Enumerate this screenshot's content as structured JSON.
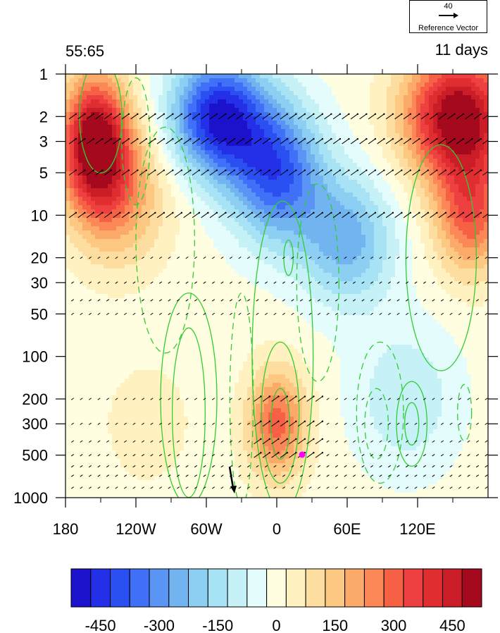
{
  "header": {
    "left_label": "55:65",
    "right_label": "11 days"
  },
  "reference_vector": {
    "magnitude": "40",
    "label": "Reference Vector"
  },
  "chart_data": {
    "type": "heatmap",
    "subtype": "longitude-pressure cross section with contours and wind vectors",
    "x_axis": {
      "range": [
        180,
        540
      ],
      "ticks": [
        {
          "value": 180,
          "label": "180"
        },
        {
          "value": 240,
          "label": "120W"
        },
        {
          "value": 300,
          "label": "60W"
        },
        {
          "value": 360,
          "label": "0"
        },
        {
          "value": 420,
          "label": "60E"
        },
        {
          "value": 480,
          "label": "120E"
        }
      ]
    },
    "y_axis": {
      "scale": "log",
      "reversed": true,
      "range": [
        1,
        1000
      ],
      "ticks": [
        1,
        2,
        3,
        5,
        10,
        20,
        30,
        50,
        100,
        200,
        300,
        500,
        1000
      ]
    },
    "colorbar": {
      "levels": [
        -525,
        -475,
        -425,
        -375,
        -325,
        -275,
        -225,
        -175,
        -125,
        -75,
        -25,
        25,
        75,
        125,
        175,
        225,
        275,
        325,
        375,
        425,
        475,
        525
      ],
      "colors": [
        "#1c12cc",
        "#2330e8",
        "#2a50f2",
        "#3f70f7",
        "#5a95f5",
        "#72b4f0",
        "#8ccff2",
        "#a8e2f5",
        "#c6f1f7",
        "#e5fcfc",
        "#fffee0",
        "#fff1c0",
        "#fedea0",
        "#fdc882",
        "#fcaa6a",
        "#fb8856",
        "#f66146",
        "#ee4040",
        "#e02d2f",
        "#ca1d27",
        "#a4091d"
      ],
      "tick_labels": [
        "-450",
        "-300",
        "-150",
        "0",
        "150",
        "300",
        "450"
      ]
    },
    "field_anomalies": [
      {
        "lon": 205,
        "p": 3,
        "value": 520,
        "rx": 28,
        "rp": 1.3
      },
      {
        "lon": 225,
        "p": 7,
        "value": 220,
        "rx": 40,
        "rp": 1.4
      },
      {
        "lon": 515,
        "p": 2,
        "value": 540,
        "rx": 45,
        "rp": 1.3
      },
      {
        "lon": 525,
        "p": 10,
        "value": 300,
        "rx": 30,
        "rp": 1.2
      },
      {
        "lon": 310,
        "p": 2,
        "value": -480,
        "rx": 40,
        "rp": 1.2
      },
      {
        "lon": 360,
        "p": 5,
        "value": -380,
        "rx": 40,
        "rp": 1.4
      },
      {
        "lon": 420,
        "p": 15,
        "value": -250,
        "rx": 40,
        "rp": 1.3
      },
      {
        "lon": 360,
        "p": 300,
        "value": 300,
        "rx": 25,
        "rp": 1.1
      },
      {
        "lon": 470,
        "p": 200,
        "value": -120,
        "rx": 45,
        "rp": 1.5
      },
      {
        "lon": 250,
        "p": 300,
        "value": 60,
        "rx": 35,
        "rp": 1.2
      }
    ],
    "solid_contours": [
      {
        "lon": 285,
        "p": 250,
        "rx": 14,
        "rp": 1.2
      },
      {
        "lon": 285,
        "p": 200,
        "rx": 24,
        "rp": 1.5
      },
      {
        "lon": 363,
        "p": 300,
        "rx": 8,
        "rp": 0.5
      },
      {
        "lon": 363,
        "p": 250,
        "rx": 16,
        "rp": 1.0
      },
      {
        "lon": 365,
        "p": 100,
        "rx": 26,
        "rp": 2.2
      },
      {
        "lon": 475,
        "p": 300,
        "rx": 6,
        "rp": 0.3
      },
      {
        "lon": 475,
        "p": 300,
        "rx": 13,
        "rp": 0.6
      },
      {
        "lon": 500,
        "p": 20,
        "rx": 30,
        "rp": 1.6
      },
      {
        "lon": 210,
        "p": 2,
        "rx": 18,
        "rp": 0.8
      },
      {
        "lon": 370,
        "p": 20,
        "rx": 4,
        "rp": 0.25
      }
    ],
    "dashed_contours": [
      {
        "lon": 265,
        "p": 15,
        "rx": 25,
        "rp": 1.6
      },
      {
        "lon": 395,
        "p": 30,
        "rx": 18,
        "rp": 1.4
      },
      {
        "lon": 445,
        "p": 300,
        "rx": 10,
        "rp": 0.5
      },
      {
        "lon": 448,
        "p": 250,
        "rx": 20,
        "rp": 1.0
      },
      {
        "lon": 330,
        "p": 200,
        "rx": 10,
        "rp": 1.5
      },
      {
        "lon": 520,
        "p": 250,
        "rx": 6,
        "rp": 0.4
      },
      {
        "lon": 240,
        "p": 3,
        "rx": 12,
        "rp": 0.9
      }
    ],
    "vector_levels": [
      2,
      3,
      5,
      10,
      20,
      30,
      40,
      50,
      200,
      300,
      400,
      500,
      600,
      700,
      850
    ]
  }
}
